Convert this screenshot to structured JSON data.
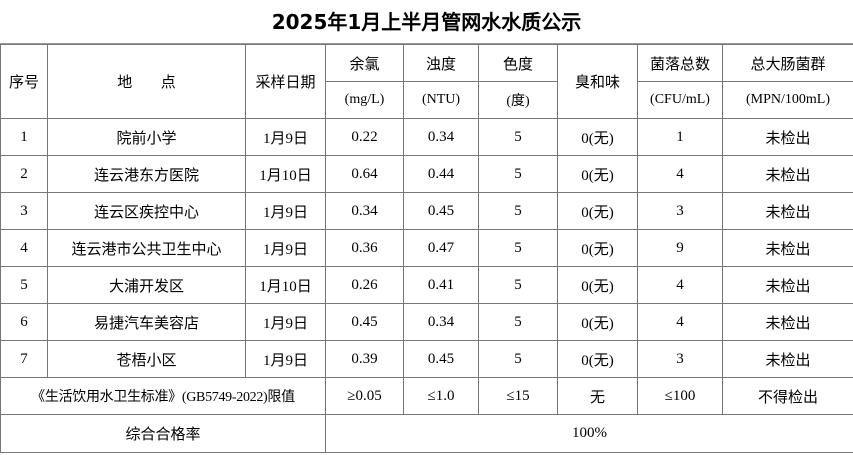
{
  "title": "2025年1月上半月管网水水质公示",
  "header": {
    "columns": [
      {
        "name": "序号"
      },
      {
        "name": "地      点"
      },
      {
        "name": "采样日期"
      },
      {
        "name": "余氯",
        "unit": "(mg/L)"
      },
      {
        "name": "浊度",
        "unit": "(NTU)"
      },
      {
        "name": "色度",
        "unit": "(度)"
      },
      {
        "name": "臭和味"
      },
      {
        "name": "菌落总数",
        "unit": "(CFU/mL)"
      },
      {
        "name": "总大肠菌群",
        "unit": "(MPN/100mL)"
      }
    ]
  },
  "table": {
    "rows": [
      [
        "1",
        "院前小学",
        "1月9日",
        "0.22",
        "0.34",
        "5",
        "0(无)",
        "1",
        "未检出"
      ],
      [
        "2",
        "连云港东方医院",
        "1月10日",
        "0.64",
        "0.44",
        "5",
        "0(无)",
        "4",
        "未检出"
      ],
      [
        "3",
        "连云区疾控中心",
        "1月9日",
        "0.34",
        "0.45",
        "5",
        "0(无)",
        "3",
        "未检出"
      ],
      [
        "4",
        "连云港市公共卫生中心",
        "1月9日",
        "0.36",
        "0.47",
        "5",
        "0(无)",
        "9",
        "未检出"
      ],
      [
        "5",
        "大浦开发区",
        "1月10日",
        "0.26",
        "0.41",
        "5",
        "0(无)",
        "4",
        "未检出"
      ],
      [
        "6",
        "易捷汽车美容店",
        "1月9日",
        "0.45",
        "0.34",
        "5",
        "0(无)",
        "4",
        "未检出"
      ],
      [
        "7",
        "苍梧小区",
        "1月9日",
        "0.39",
        "0.45",
        "5",
        "0(无)",
        "3",
        "未检出"
      ]
    ]
  },
  "standard": {
    "label": "《生活饮用水卫生标准》(GB5749-2022)限值",
    "limits": [
      "≥0.05",
      "≤1.0",
      "≤15",
      "无",
      "≤100",
      "不得检出"
    ]
  },
  "summary": {
    "label": "综合合格率",
    "value": "100%"
  }
}
